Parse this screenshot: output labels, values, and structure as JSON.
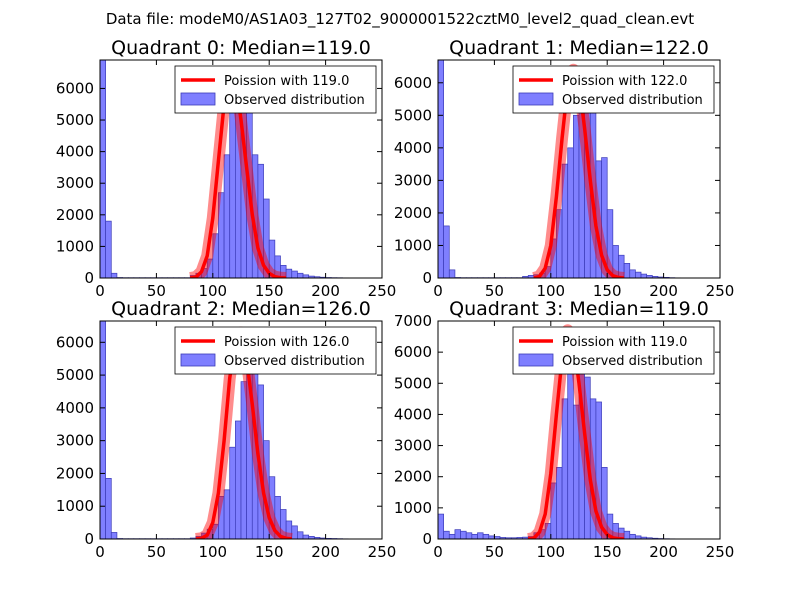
{
  "figure": {
    "suptitle": "Data file: modeM0/AS1A03_127T02_9000001522cztM0_level2_quad_clean.evt",
    "hist_color": "#7f7fff",
    "hist_edge": "#3b3bb8",
    "fit_color": "#ff0000",
    "fit_alpha": 0.45
  },
  "chart_data": [
    {
      "type": "bar",
      "title": "Quadrant 0: Median=119.0",
      "median": 119.0,
      "legend": [
        "Poission with 119.0",
        "Observed distribution"
      ],
      "legend_location": "upper-right",
      "xlim": [
        0,
        250
      ],
      "ylim": [
        0,
        6900
      ],
      "xticks": [
        0,
        50,
        100,
        150,
        200,
        250
      ],
      "yticks": [
        0,
        1000,
        2000,
        3000,
        4000,
        5000,
        6000
      ],
      "bin_width": 5,
      "bins": [
        0,
        5,
        10,
        15,
        20,
        25,
        30,
        35,
        40,
        45,
        50,
        55,
        60,
        65,
        70,
        75,
        80,
        85,
        90,
        95,
        100,
        105,
        110,
        115,
        120,
        125,
        130,
        135,
        140,
        145,
        150,
        155,
        160,
        165,
        170,
        175,
        180,
        185,
        190,
        195,
        200,
        205,
        210,
        215,
        220
      ],
      "counts": [
        6900,
        1800,
        150,
        15,
        10,
        10,
        10,
        10,
        10,
        10,
        10,
        10,
        10,
        10,
        10,
        10,
        80,
        150,
        300,
        600,
        1400,
        2700,
        3900,
        5900,
        6300,
        6500,
        5700,
        3900,
        3600,
        2500,
        1200,
        700,
        400,
        280,
        220,
        150,
        100,
        60,
        40,
        25,
        15,
        10,
        8,
        5,
        3
      ],
      "fit_x": [
        80,
        85,
        90,
        95,
        100,
        105,
        110,
        115,
        120,
        125,
        130,
        135,
        140,
        145,
        150,
        155,
        160,
        165
      ],
      "fit_y": [
        0,
        30,
        200,
        700,
        1900,
        3700,
        5500,
        6500,
        6300,
        5000,
        3500,
        2000,
        950,
        400,
        150,
        40,
        10,
        0
      ]
    },
    {
      "type": "bar",
      "title": "Quadrant 1: Median=122.0",
      "median": 122.0,
      "legend": [
        "Poission with 122.0",
        "Observed distribution"
      ],
      "legend_location": "upper-right",
      "xlim": [
        0,
        250
      ],
      "ylim": [
        0,
        6700
      ],
      "xticks": [
        0,
        50,
        100,
        150,
        200,
        250
      ],
      "yticks": [
        0,
        1000,
        2000,
        3000,
        4000,
        5000,
        6000
      ],
      "bin_width": 5,
      "bins": [
        0,
        5,
        10,
        15,
        20,
        25,
        30,
        35,
        40,
        45,
        50,
        55,
        60,
        65,
        70,
        75,
        80,
        85,
        90,
        95,
        100,
        105,
        110,
        115,
        120,
        125,
        130,
        135,
        140,
        145,
        150,
        155,
        160,
        165,
        170,
        175,
        180,
        185,
        190,
        195,
        200,
        205,
        210
      ],
      "counts": [
        6700,
        1600,
        250,
        15,
        10,
        10,
        10,
        10,
        10,
        10,
        10,
        10,
        10,
        10,
        10,
        50,
        80,
        100,
        150,
        350,
        1200,
        2100,
        3500,
        4000,
        5000,
        5300,
        6400,
        6000,
        3600,
        3700,
        2100,
        1000,
        700,
        450,
        250,
        180,
        120,
        80,
        50,
        30,
        20,
        10,
        5
      ],
      "fit_x": [
        85,
        90,
        95,
        100,
        105,
        110,
        115,
        120,
        125,
        130,
        135,
        140,
        145,
        150,
        155,
        160,
        165
      ],
      "fit_y": [
        0,
        50,
        300,
        1000,
        2500,
        4300,
        5900,
        6400,
        6000,
        4600,
        3000,
        1600,
        700,
        250,
        70,
        15,
        0
      ]
    },
    {
      "type": "bar",
      "title": "Quadrant 2: Median=126.0",
      "median": 126.0,
      "legend": [
        "Poission with 126.0",
        "Observed distribution"
      ],
      "legend_location": "upper-right",
      "xlim": [
        0,
        250
      ],
      "ylim": [
        0,
        6650
      ],
      "xticks": [
        0,
        50,
        100,
        150,
        200,
        250
      ],
      "yticks": [
        0,
        1000,
        2000,
        3000,
        4000,
        5000,
        6000
      ],
      "bin_width": 5,
      "bins": [
        0,
        5,
        10,
        15,
        20,
        25,
        30,
        35,
        40,
        45,
        50,
        55,
        60,
        65,
        70,
        75,
        80,
        85,
        90,
        95,
        100,
        105,
        110,
        115,
        120,
        125,
        130,
        135,
        140,
        145,
        150,
        155,
        160,
        165,
        170,
        175,
        180,
        185,
        190,
        195,
        200,
        205,
        210,
        215,
        220
      ],
      "counts": [
        6650,
        1850,
        200,
        15,
        10,
        10,
        10,
        10,
        10,
        10,
        10,
        10,
        10,
        10,
        10,
        10,
        30,
        80,
        180,
        300,
        450,
        1300,
        1500,
        2800,
        3600,
        4800,
        6200,
        5500,
        4700,
        3000,
        1900,
        1300,
        900,
        550,
        400,
        220,
        120,
        80,
        50,
        30,
        20,
        15,
        10,
        6,
        4
      ],
      "fit_x": [
        85,
        90,
        95,
        100,
        105,
        110,
        115,
        120,
        125,
        130,
        135,
        140,
        145,
        150,
        155,
        160,
        165,
        170
      ],
      "fit_y": [
        0,
        20,
        120,
        500,
        1400,
        3000,
        4900,
        6100,
        6300,
        5500,
        4100,
        2600,
        1400,
        650,
        260,
        80,
        20,
        0
      ]
    },
    {
      "type": "bar",
      "title": "Quadrant 3: Median=119.0",
      "median": 119.0,
      "legend": [
        "Poission with 119.0",
        "Observed distribution"
      ],
      "legend_location": "upper-right",
      "xlim": [
        0,
        250
      ],
      "ylim": [
        0,
        7000
      ],
      "xticks": [
        0,
        50,
        100,
        150,
        200,
        250
      ],
      "yticks": [
        0,
        1000,
        2000,
        3000,
        4000,
        5000,
        6000,
        7000
      ],
      "bin_width": 5,
      "bins": [
        0,
        5,
        10,
        15,
        20,
        25,
        30,
        35,
        40,
        45,
        50,
        55,
        60,
        65,
        70,
        75,
        80,
        85,
        90,
        95,
        100,
        105,
        110,
        115,
        120,
        125,
        130,
        135,
        140,
        145,
        150,
        155,
        160,
        165,
        170,
        175,
        180,
        185,
        190,
        195,
        200,
        205,
        210
      ],
      "counts": [
        800,
        250,
        150,
        300,
        250,
        200,
        150,
        200,
        150,
        100,
        80,
        50,
        40,
        40,
        50,
        60,
        80,
        200,
        300,
        500,
        1800,
        2300,
        4500,
        5600,
        4300,
        6300,
        5200,
        4500,
        4400,
        2300,
        800,
        500,
        350,
        250,
        150,
        100,
        60,
        40,
        25,
        15,
        10,
        6,
        4
      ],
      "fit_x": [
        80,
        85,
        90,
        95,
        100,
        105,
        110,
        115,
        120,
        125,
        130,
        135,
        140,
        145,
        150,
        155,
        160,
        165
      ],
      "fit_y": [
        0,
        30,
        220,
        800,
        2100,
        4000,
        5800,
        6700,
        6400,
        5000,
        3400,
        1900,
        900,
        380,
        140,
        40,
        10,
        0
      ]
    }
  ]
}
